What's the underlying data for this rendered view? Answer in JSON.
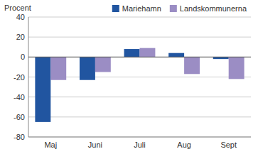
{
  "chart_data": {
    "type": "bar",
    "y_label": "Procent",
    "categories": [
      "Maj",
      "Juni",
      "Juli",
      "Aug",
      "Sept"
    ],
    "series": [
      {
        "name": "Mariehamn",
        "color": "#2155a0",
        "values": [
          -65,
          -23,
          8,
          4,
          -2
        ]
      },
      {
        "name": "Landskommunerna",
        "color": "#9b8dc4",
        "values": [
          -23,
          -15,
          9,
          -17,
          -22
        ]
      }
    ],
    "ylim": [
      -80,
      40
    ],
    "yticks": [
      -80,
      -60,
      -40,
      -20,
      0,
      20,
      40
    ],
    "grid": true,
    "legend": "top"
  }
}
